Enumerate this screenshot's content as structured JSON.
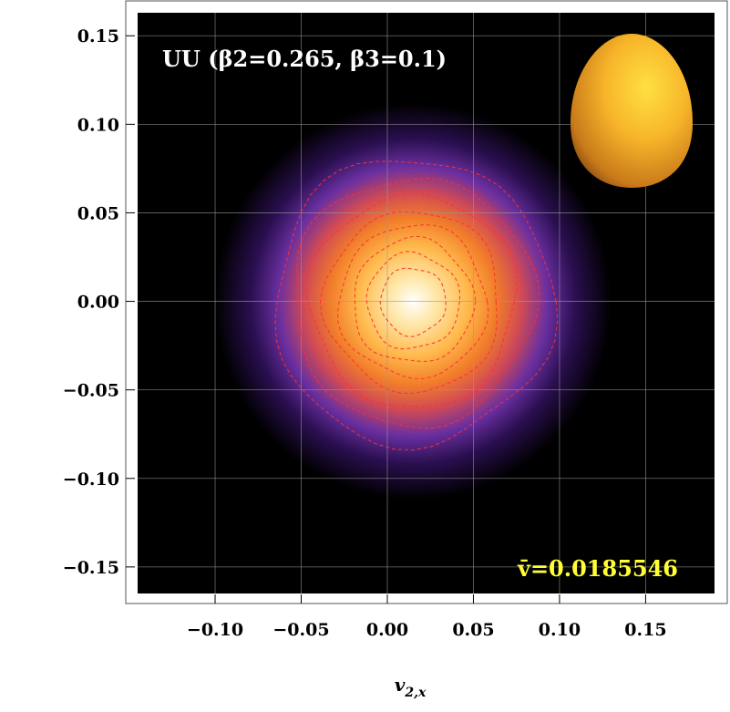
{
  "chart_data": {
    "type": "heatmap",
    "title": "",
    "xlabel": "v",
    "xlabel_subscript": "2,x",
    "ylabel": "",
    "xlim": [
      -0.145,
      0.19
    ],
    "ylim": [
      -0.165,
      0.163
    ],
    "x_ticks": [
      -0.1,
      -0.05,
      0.0,
      0.05,
      0.1,
      0.15
    ],
    "x_tick_labels": [
      "−0.10",
      "−0.05",
      "0.00",
      "0.05",
      "0.10",
      "0.15"
    ],
    "y_ticks": [
      -0.15,
      -0.1,
      -0.05,
      0.0,
      0.05,
      0.1,
      0.15
    ],
    "y_tick_labels": [
      "−0.15",
      "−0.10",
      "−0.05",
      "0.00",
      "0.05",
      "0.10",
      "0.15"
    ],
    "grid": true,
    "distribution": {
      "center": [
        0.015,
        0.0
      ],
      "sigma": 0.045
    },
    "colormap": [
      "#000000",
      "#2a0f50",
      "#6a2fa0",
      "#d04a55",
      "#f27d2a",
      "#ffb84a",
      "#ffe7a8",
      "#ffffff"
    ],
    "contour_color": "#ff3030",
    "contour_radii": [
      0.081,
      0.07,
      0.06,
      0.051,
      0.043,
      0.035,
      0.027,
      0.019
    ],
    "annotations": {
      "system": "UU (β2=0.265, β3=0.1)",
      "mean_value": "v̄=0.0185546"
    }
  }
}
